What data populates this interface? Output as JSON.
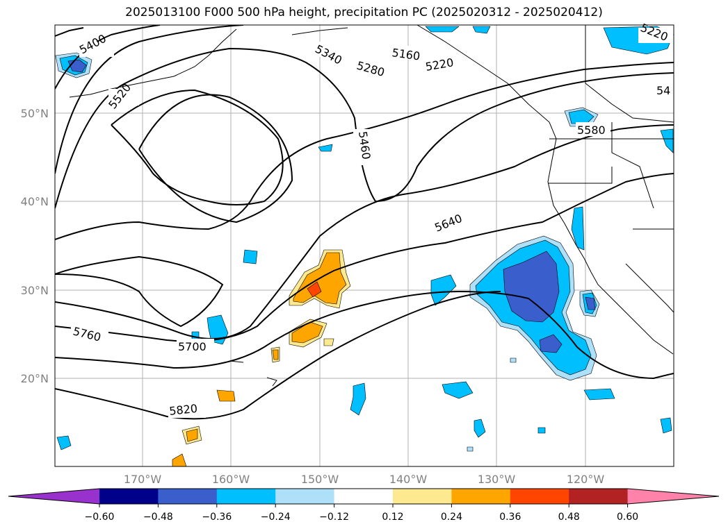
{
  "title": "2025013100 F000 500 hPa height, precipitation PC (2025020312 - 2025020412)",
  "lat_labels": [
    "50°N",
    "40°N",
    "30°N",
    "20°N"
  ],
  "lon_labels": [
    "170°W",
    "160°W",
    "150°W",
    "140°W",
    "130°W",
    "120°W"
  ],
  "colorbar": {
    "ticks": [
      "−0.60",
      "−0.48",
      "−0.36",
      "−0.24",
      "−0.12",
      "0.12",
      "0.24",
      "0.36",
      "0.48",
      "0.60"
    ],
    "colors": [
      "#9932cc",
      "#00008b",
      "#3a5fcd",
      "#00bfff",
      "#aee0fa",
      "#ffffff",
      "#fde98f",
      "#ffa500",
      "#ff4500",
      "#b22222",
      "#ff82ab"
    ]
  },
  "contour_labels": [
    "5400",
    "5520",
    "5340",
    "5280",
    "5160",
    "5220",
    "5220",
    "54",
    "5460",
    "5580",
    "5640",
    "5760",
    "5700",
    "5820"
  ]
}
